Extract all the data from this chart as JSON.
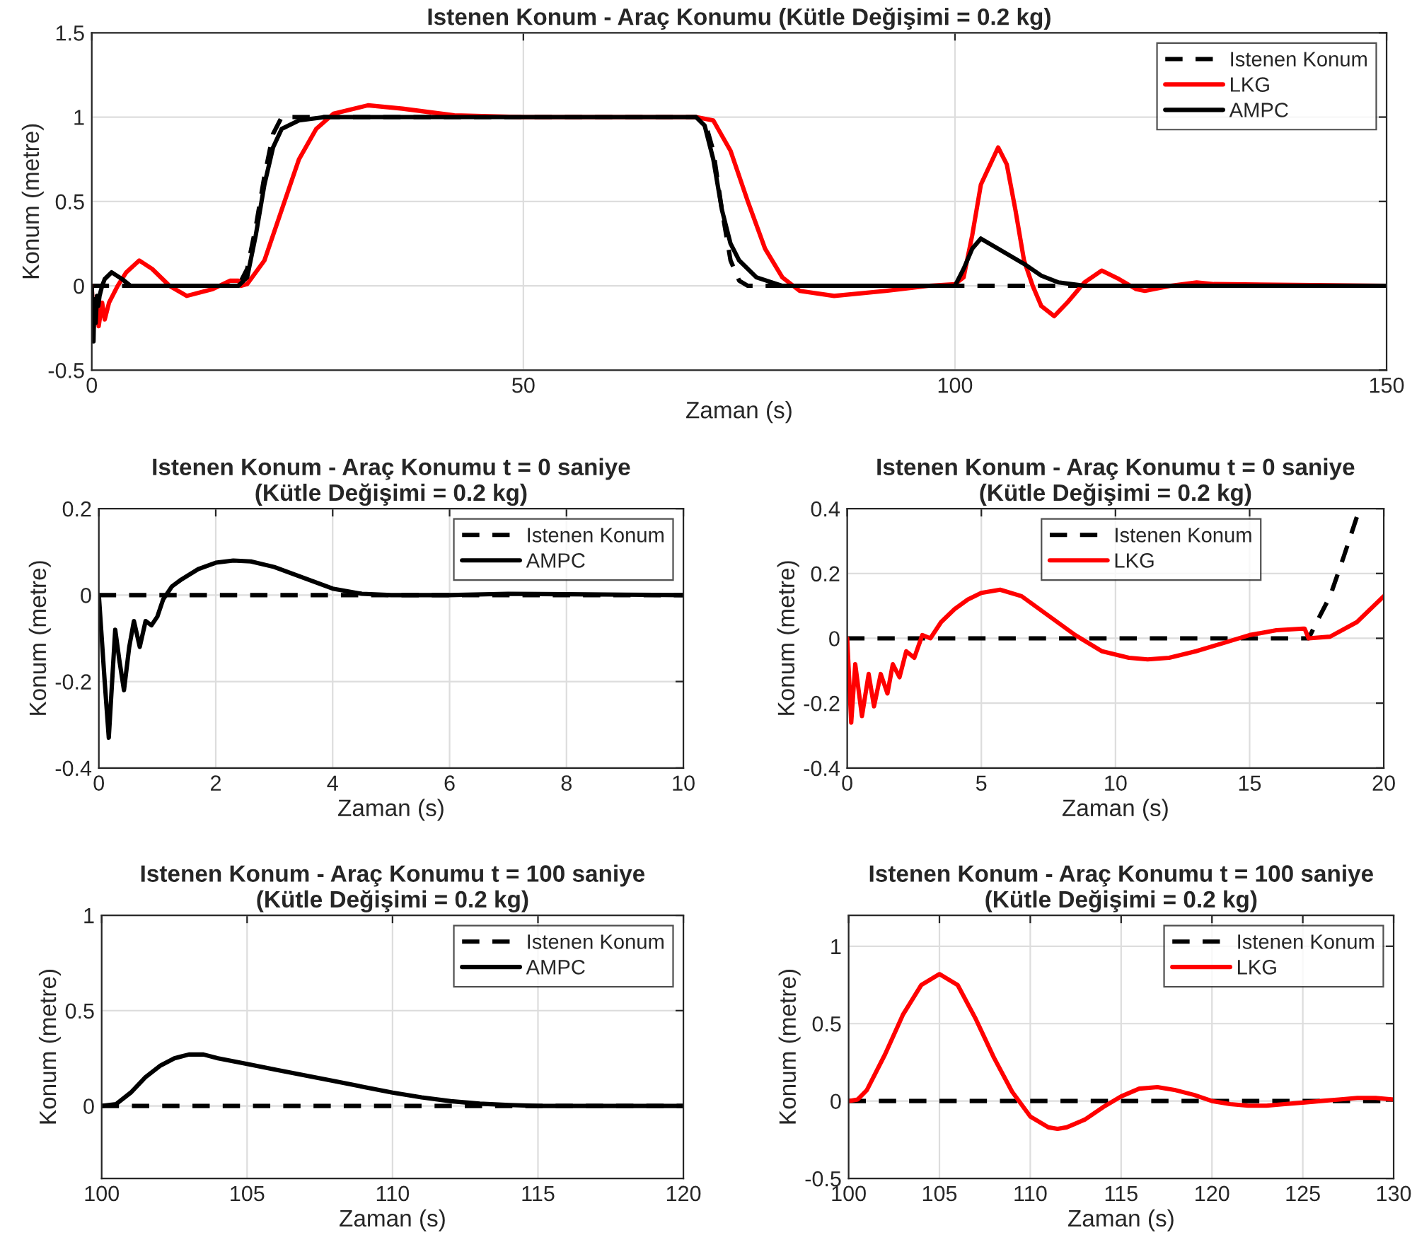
{
  "chart_data": [
    {
      "type": "line",
      "title": "Istenen Konum - Araç Konumu (Kütle Değişimi = 0.2 kg)",
      "xlabel": "Zaman (s)",
      "ylabel": "Konum (metre)",
      "xlim": [
        0,
        150
      ],
      "xticks": [
        0,
        50,
        100,
        150
      ],
      "ylim": [
        -0.5,
        1.5
      ],
      "yticks": [
        -0.5,
        0,
        0.5,
        1,
        1.5
      ],
      "grid": true,
      "legend": "top right",
      "series": [
        {
          "name": "Istenen Konum",
          "color": "#000000",
          "line_style": "dashed",
          "x": [
            0,
            17,
            18,
            19,
            20,
            21,
            22,
            23,
            70,
            71,
            72,
            73,
            74,
            75,
            76,
            77,
            100,
            150
          ],
          "values": [
            0,
            0,
            0.1,
            0.35,
            0.65,
            0.9,
            1,
            1,
            1,
            0.98,
            0.8,
            0.45,
            0.15,
            0.03,
            0,
            0,
            0,
            0
          ]
        },
        {
          "name": "LKG",
          "color": "#ff0000",
          "line_style": "solid",
          "x": [
            0,
            0.2,
            0.5,
            0.8,
            1.2,
            1.5,
            2,
            3,
            4,
            5.5,
            7,
            9,
            11,
            14,
            16,
            17,
            17.3,
            18,
            20,
            22,
            24,
            26,
            28,
            32,
            36,
            42,
            50,
            70,
            72,
            74,
            76,
            78,
            80,
            82,
            86,
            92,
            97,
            100,
            101,
            102,
            103,
            105,
            106,
            107,
            108,
            109,
            110,
            111.5,
            113,
            115,
            117,
            119,
            121,
            122,
            125,
            128,
            130,
            150
          ],
          "values": [
            0,
            -0.25,
            -0.08,
            -0.24,
            -0.1,
            -0.2,
            -0.1,
            0,
            0.08,
            0.15,
            0.1,
            0,
            -0.06,
            -0.02,
            0.03,
            0.03,
            0,
            0.01,
            0.15,
            0.45,
            0.75,
            0.93,
            1.02,
            1.07,
            1.05,
            1.01,
            1,
            1,
            0.98,
            0.8,
            0.5,
            0.22,
            0.05,
            -0.03,
            -0.06,
            -0.03,
            0,
            0.01,
            0.05,
            0.3,
            0.6,
            0.82,
            0.72,
            0.45,
            0.15,
            0,
            -0.12,
            -0.18,
            -0.1,
            0.02,
            0.09,
            0.04,
            -0.02,
            -0.03,
            0,
            0.02,
            0.01,
            0
          ]
        },
        {
          "name": "AMPC",
          "color": "#000000",
          "line_style": "solid",
          "x": [
            0,
            0.2,
            0.3,
            0.45,
            0.6,
            0.75,
            0.9,
            1.2,
            1.5,
            2.3,
            3.5,
            4.5,
            10,
            17,
            18,
            19,
            20,
            21,
            22,
            24,
            27,
            70,
            71,
            72,
            73,
            74,
            75,
            77,
            80,
            100,
            101,
            102,
            103,
            105,
            108,
            110,
            112,
            115,
            150
          ],
          "values": [
            0,
            -0.33,
            -0.08,
            -0.22,
            -0.06,
            -0.12,
            -0.06,
            0,
            0.04,
            0.08,
            0.04,
            0,
            0,
            0,
            0.05,
            0.3,
            0.6,
            0.82,
            0.93,
            0.98,
            1,
            1,
            0.95,
            0.75,
            0.45,
            0.25,
            0.15,
            0.05,
            0,
            0,
            0.1,
            0.22,
            0.28,
            0.22,
            0.13,
            0.06,
            0.02,
            0,
            0
          ]
        }
      ]
    },
    {
      "type": "line",
      "title": "Istenen Konum - Araç Konumu t = 0 saniye\n(Kütle Değişimi = 0.2 kg)",
      "xlabel": "Zaman (s)",
      "ylabel": "Konum (metre)",
      "xlim": [
        0,
        10
      ],
      "xticks": [
        0,
        2,
        4,
        6,
        8,
        10
      ],
      "ylim": [
        -0.4,
        0.2
      ],
      "yticks": [
        -0.4,
        -0.2,
        0,
        0.2
      ],
      "grid": true,
      "legend": "top right",
      "series": [
        {
          "name": "Istenen Konum",
          "color": "#000000",
          "line_style": "dashed",
          "x": [
            0,
            10
          ],
          "values": [
            0,
            0
          ]
        },
        {
          "name": "AMPC",
          "color": "#000000",
          "line_style": "solid",
          "x": [
            0,
            0.1,
            0.17,
            0.28,
            0.35,
            0.43,
            0.52,
            0.6,
            0.7,
            0.8,
            0.9,
            1.0,
            1.1,
            1.25,
            1.4,
            1.7,
            2.0,
            2.3,
            2.6,
            3.0,
            3.5,
            4.0,
            4.5,
            5.0,
            6,
            7,
            8,
            9,
            10
          ],
          "values": [
            0,
            -0.2,
            -0.33,
            -0.08,
            -0.15,
            -0.22,
            -0.12,
            -0.06,
            -0.12,
            -0.06,
            -0.07,
            -0.05,
            -0.01,
            0.02,
            0.035,
            0.06,
            0.075,
            0.08,
            0.078,
            0.065,
            0.04,
            0.015,
            0.003,
            0,
            0,
            0.003,
            0.002,
            0.001,
            0
          ]
        }
      ]
    },
    {
      "type": "line",
      "title": "Istenen Konum - Araç Konumu t = 0 saniye\n(Kütle Değişimi = 0.2 kg)",
      "xlabel": "Zaman (s)",
      "ylabel": "Konum (metre)",
      "xlim": [
        0,
        20
      ],
      "xticks": [
        0,
        5,
        10,
        15,
        20
      ],
      "ylim": [
        -0.4,
        0.4
      ],
      "yticks": [
        -0.4,
        -0.2,
        0,
        0.2,
        0.4
      ],
      "grid": true,
      "legend": "top right",
      "series": [
        {
          "name": "Istenen Konum",
          "color": "#000000",
          "line_style": "dashed",
          "x": [
            0,
            17.2,
            17.5,
            18,
            18.5,
            19.1
          ],
          "values": [
            0,
            0,
            0.05,
            0.13,
            0.25,
            0.4
          ]
        },
        {
          "name": "LKG",
          "color": "#ff0000",
          "line_style": "solid",
          "x": [
            0,
            0.15,
            0.3,
            0.55,
            0.8,
            1.0,
            1.25,
            1.5,
            1.7,
            1.95,
            2.2,
            2.5,
            2.8,
            3.1,
            3.5,
            4.0,
            4.5,
            5.0,
            5.7,
            6.5,
            7.5,
            8.5,
            9.5,
            10.5,
            11.2,
            12,
            13,
            14,
            15,
            16,
            17,
            17.05,
            17.2,
            18,
            19,
            20
          ],
          "values": [
            0,
            -0.26,
            -0.08,
            -0.24,
            -0.11,
            -0.21,
            -0.11,
            -0.17,
            -0.08,
            -0.12,
            -0.04,
            -0.06,
            0.01,
            0,
            0.05,
            0.09,
            0.12,
            0.14,
            0.15,
            0.13,
            0.07,
            0.01,
            -0.04,
            -0.06,
            -0.065,
            -0.06,
            -0.04,
            -0.015,
            0.01,
            0.025,
            0.03,
            0.03,
            0.0,
            0.005,
            0.05,
            0.13
          ]
        }
      ]
    },
    {
      "type": "line",
      "title": "Istenen Konum - Araç Konumu t = 100 saniye\n(Kütle Değişimi = 0.2 kg)",
      "xlabel": "Zaman (s)",
      "ylabel": "Konum (metre)",
      "xlim": [
        100,
        120
      ],
      "xticks": [
        100,
        105,
        110,
        115,
        120
      ],
      "ylim": [
        -0.38,
        1
      ],
      "yticks": [
        0,
        0.5,
        1
      ],
      "grid": true,
      "legend": "top right",
      "series": [
        {
          "name": "Istenen Konum",
          "color": "#000000",
          "line_style": "dashed",
          "x": [
            100,
            120
          ],
          "values": [
            0,
            0
          ]
        },
        {
          "name": "AMPC",
          "color": "#000000",
          "line_style": "solid",
          "x": [
            100,
            100.5,
            101,
            101.5,
            102,
            102.5,
            103,
            103.5,
            104,
            105,
            106,
            107,
            108,
            109,
            110,
            111,
            112,
            113,
            114,
            115,
            117,
            120
          ],
          "values": [
            0,
            0.01,
            0.07,
            0.15,
            0.21,
            0.25,
            0.27,
            0.27,
            0.25,
            0.22,
            0.19,
            0.16,
            0.13,
            0.1,
            0.07,
            0.045,
            0.025,
            0.012,
            0.005,
            0,
            0,
            0
          ]
        }
      ]
    },
    {
      "type": "line",
      "title": "Istenen Konum - Araç Konumu t = 100 saniye\n(Kütle Değişimi = 0.2 kg)",
      "xlabel": "Zaman (s)",
      "ylabel": "Konum (metre)",
      "xlim": [
        100,
        130
      ],
      "xticks": [
        100,
        105,
        110,
        115,
        120,
        125,
        130
      ],
      "ylim": [
        -0.5,
        1.2
      ],
      "yticks": [
        -0.5,
        0,
        0.5,
        1
      ],
      "grid": true,
      "legend": "top right",
      "series": [
        {
          "name": "Istenen Konum",
          "color": "#000000",
          "line_style": "dashed",
          "x": [
            100,
            130
          ],
          "values": [
            0,
            0
          ]
        },
        {
          "name": "LKG",
          "color": "#ff0000",
          "line_style": "solid",
          "x": [
            100,
            100.5,
            101,
            102,
            103,
            104,
            105,
            106,
            107,
            108,
            109,
            110,
            111,
            111.5,
            112,
            113,
            114,
            115,
            116,
            117,
            118,
            119,
            120,
            121,
            122,
            123,
            124,
            125,
            126,
            127,
            128,
            129,
            130
          ],
          "values": [
            0,
            0.01,
            0.07,
            0.3,
            0.56,
            0.75,
            0.82,
            0.75,
            0.53,
            0.28,
            0.06,
            -0.1,
            -0.17,
            -0.18,
            -0.17,
            -0.12,
            -0.04,
            0.03,
            0.08,
            0.09,
            0.07,
            0.04,
            0.0,
            -0.02,
            -0.03,
            -0.03,
            -0.02,
            -0.01,
            0.0,
            0.01,
            0.02,
            0.02,
            0.01
          ]
        }
      ]
    }
  ]
}
